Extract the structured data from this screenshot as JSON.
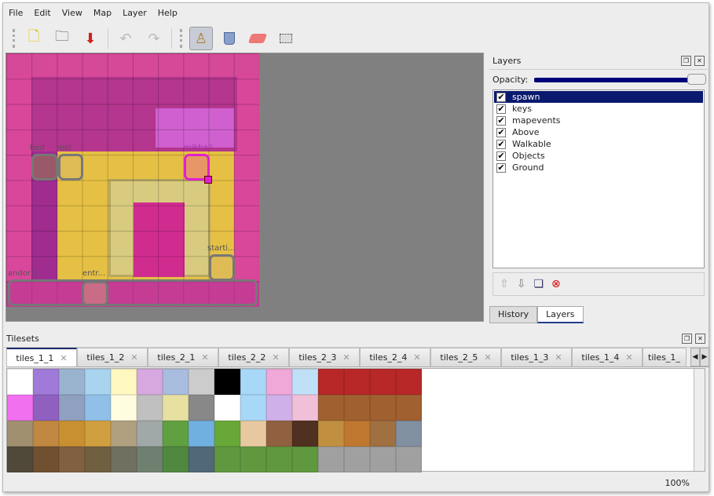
{
  "menu": [
    "File",
    "Edit",
    "View",
    "Map",
    "Layer",
    "Help"
  ],
  "toolbar": {
    "new": "new-file",
    "open": "open",
    "save": "save",
    "undo": "undo",
    "redo": "redo",
    "stamp": "stamp-brush",
    "fill": "bucket-fill",
    "eraser": "eraser",
    "select": "rectangle-select",
    "active": "stamp-brush"
  },
  "map": {
    "objects": [
      "bed",
      "rest",
      "mikhail",
      "starti...",
      "andor:1",
      "entr..."
    ]
  },
  "layers": {
    "title": "Layers",
    "opacity_label": "Opacity:",
    "opacity": 100,
    "items": [
      {
        "name": "spawn",
        "visible": true,
        "selected": true
      },
      {
        "name": "keys",
        "visible": true
      },
      {
        "name": "mapevents",
        "visible": true
      },
      {
        "name": "Above",
        "visible": true
      },
      {
        "name": "Walkable",
        "visible": true
      },
      {
        "name": "Objects",
        "visible": true
      },
      {
        "name": "Ground",
        "visible": true
      }
    ]
  },
  "dock_tabs": [
    "History",
    "Layers"
  ],
  "tilesets": {
    "title": "Tilesets",
    "tabs": [
      "tiles_1_1",
      "tiles_1_2",
      "tiles_2_1",
      "tiles_2_2",
      "tiles_2_3",
      "tiles_2_4",
      "tiles_2_5",
      "tiles_1_3",
      "tiles_1_4",
      "tiles_1_"
    ],
    "active": "tiles_1_1"
  },
  "status": {
    "zoom": "100%"
  },
  "colors": {
    "selection": "#0a1a6e",
    "map_bg": "#808080"
  }
}
